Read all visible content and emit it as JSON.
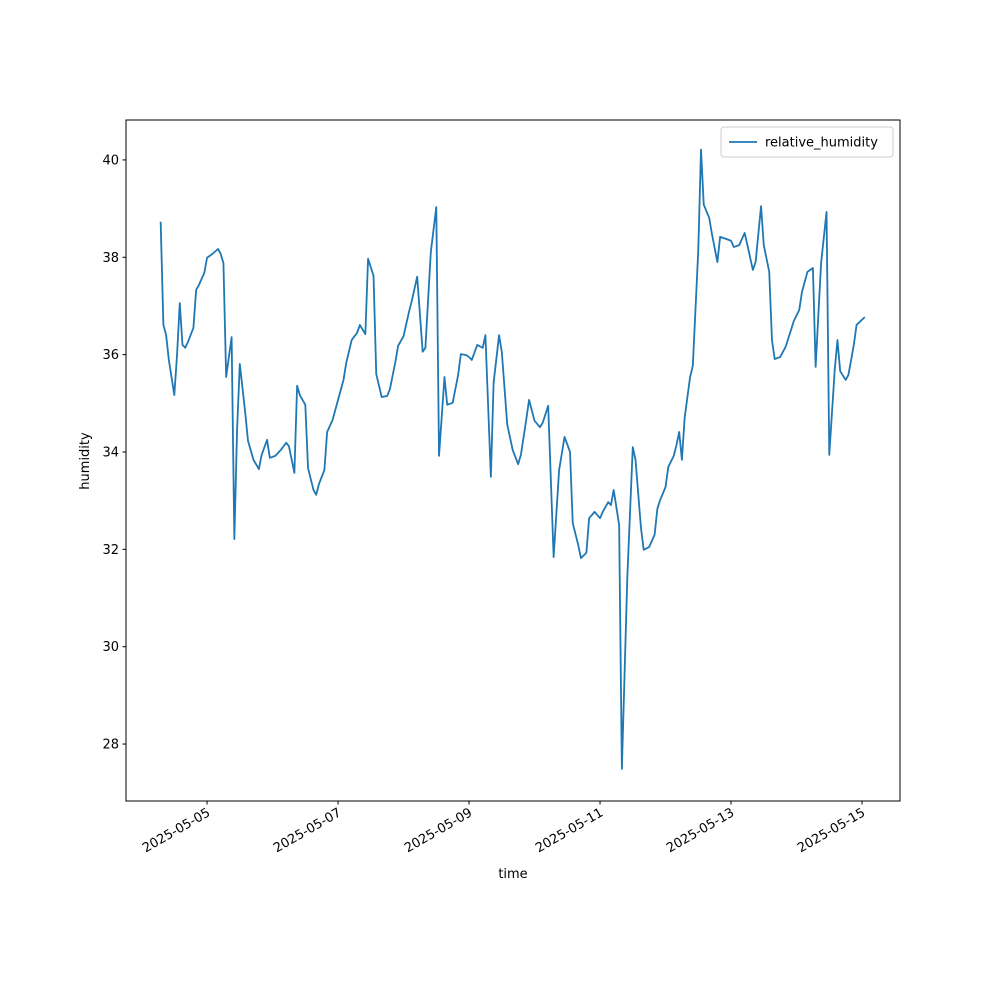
{
  "chart_data": {
    "type": "line",
    "xlabel": "time",
    "ylabel": "humidity",
    "x": [
      "2025-05-04T07:00",
      "2025-05-04T08:00",
      "2025-05-04T09:00",
      "2025-05-04T10:00",
      "2025-05-04T12:00",
      "2025-05-04T13:00",
      "2025-05-04T14:00",
      "2025-05-04T15:00",
      "2025-05-04T16:00",
      "2025-05-04T17:00",
      "2025-05-04T19:00",
      "2025-05-04T20:00",
      "2025-05-04T21:00",
      "2025-05-04T23:00",
      "2025-05-05T00:00",
      "2025-05-05T02:00",
      "2025-05-05T04:00",
      "2025-05-05T05:00",
      "2025-05-05T06:00",
      "2025-05-05T07:00",
      "2025-05-05T09:00",
      "2025-05-05T10:00",
      "2025-05-05T11:00",
      "2025-05-05T12:00",
      "2025-05-05T14:00",
      "2025-05-05T15:00",
      "2025-05-05T17:00",
      "2025-05-05T19:00",
      "2025-05-05T20:00",
      "2025-05-05T22:00",
      "2025-05-05T23:00",
      "2025-05-06T01:00",
      "2025-05-06T03:00",
      "2025-05-06T05:00",
      "2025-05-06T06:00",
      "2025-05-06T08:00",
      "2025-05-06T09:00",
      "2025-05-06T10:00",
      "2025-05-06T12:00",
      "2025-05-06T13:00",
      "2025-05-06T15:00",
      "2025-05-06T16:00",
      "2025-05-06T17:00",
      "2025-05-06T19:00",
      "2025-05-06T20:00",
      "2025-05-06T22:00",
      "2025-05-07T00:00",
      "2025-05-07T02:00",
      "2025-05-07T03:00",
      "2025-05-07T05:00",
      "2025-05-07T07:00",
      "2025-05-07T08:00",
      "2025-05-07T10:00",
      "2025-05-07T11:00",
      "2025-05-07T13:00",
      "2025-05-07T14:00",
      "2025-05-07T16:00",
      "2025-05-07T18:00",
      "2025-05-07T19:00",
      "2025-05-07T21:00",
      "2025-05-07T22:00",
      "2025-05-08T00:00",
      "2025-05-08T02:00",
      "2025-05-08T03:00",
      "2025-05-08T05:00",
      "2025-05-08T07:00",
      "2025-05-08T08:00",
      "2025-05-08T10:00",
      "2025-05-08T12:00",
      "2025-05-08T13:00",
      "2025-05-08T15:00",
      "2025-05-08T16:00",
      "2025-05-08T18:00",
      "2025-05-08T20:00",
      "2025-05-08T21:00",
      "2025-05-08T23:00",
      "2025-05-09T00:00",
      "2025-05-09T01:00",
      "2025-05-09T03:00",
      "2025-05-09T05:00",
      "2025-05-09T06:00",
      "2025-05-09T08:00",
      "2025-05-09T09:00",
      "2025-05-09T11:00",
      "2025-05-09T12:00",
      "2025-05-09T14:00",
      "2025-05-09T16:00",
      "2025-05-09T18:00",
      "2025-05-09T19:00",
      "2025-05-09T21:00",
      "2025-05-09T22:00",
      "2025-05-10T00:00",
      "2025-05-10T02:00",
      "2025-05-10T03:00",
      "2025-05-10T05:00",
      "2025-05-10T07:00",
      "2025-05-10T09:00",
      "2025-05-10T11:00",
      "2025-05-10T13:00",
      "2025-05-10T14:00",
      "2025-05-10T16:00",
      "2025-05-10T17:00",
      "2025-05-10T19:00",
      "2025-05-10T20:00",
      "2025-05-10T22:00",
      "2025-05-11T00:00",
      "2025-05-11T01:00",
      "2025-05-11T03:00",
      "2025-05-11T04:00",
      "2025-05-11T05:00",
      "2025-05-11T07:00",
      "2025-05-11T08:00",
      "2025-05-11T10:00",
      "2025-05-11T12:00",
      "2025-05-11T13:00",
      "2025-05-11T15:00",
      "2025-05-11T16:00",
      "2025-05-11T18:00",
      "2025-05-11T20:00",
      "2025-05-11T21:00",
      "2025-05-11T22:00",
      "2025-05-12T00:00",
      "2025-05-12T01:00",
      "2025-05-12T03:00",
      "2025-05-12T04:00",
      "2025-05-12T05:00",
      "2025-05-12T06:00",
      "2025-05-12T07:00",
      "2025-05-12T09:00",
      "2025-05-12T10:00",
      "2025-05-12T12:00",
      "2025-05-12T13:00",
      "2025-05-12T14:00",
      "2025-05-12T16:00",
      "2025-05-12T17:00",
      "2025-05-12T19:00",
      "2025-05-12T20:00",
      "2025-05-12T22:00",
      "2025-05-13T00:00",
      "2025-05-13T01:00",
      "2025-05-13T03:00",
      "2025-05-13T05:00",
      "2025-05-13T06:00",
      "2025-05-13T08:00",
      "2025-05-13T09:00",
      "2025-05-13T11:00",
      "2025-05-13T12:00",
      "2025-05-13T14:00",
      "2025-05-13T15:00",
      "2025-05-13T16:00",
      "2025-05-13T18:00",
      "2025-05-13T20:00",
      "2025-05-13T22:00",
      "2025-05-13T23:00",
      "2025-05-14T01:00",
      "2025-05-14T02:00",
      "2025-05-14T04:00",
      "2025-05-14T06:00",
      "2025-05-14T07:00",
      "2025-05-14T09:00",
      "2025-05-14T11:00",
      "2025-05-14T12:00",
      "2025-05-14T14:00",
      "2025-05-14T15:00",
      "2025-05-14T16:00",
      "2025-05-14T18:00",
      "2025-05-14T19:00",
      "2025-05-14T21:00",
      "2025-05-14T22:00",
      "2025-05-15T01:00"
    ],
    "series": [
      {
        "name": "relative_humidity",
        "color": "#1f77b4",
        "values": [
          38.73,
          36.61,
          36.4,
          35.89,
          35.17,
          35.99,
          37.06,
          36.2,
          36.14,
          36.26,
          36.55,
          37.33,
          37.43,
          37.68,
          37.99,
          38.07,
          38.17,
          38.07,
          37.88,
          35.54,
          36.36,
          32.21,
          34.45,
          35.81,
          34.8,
          34.23,
          33.84,
          33.65,
          33.94,
          34.25,
          33.88,
          33.92,
          34.04,
          34.19,
          34.12,
          33.57,
          35.36,
          35.17,
          34.97,
          33.67,
          33.22,
          33.12,
          33.34,
          33.63,
          34.41,
          34.66,
          35.07,
          35.48,
          35.83,
          36.3,
          36.45,
          36.61,
          36.42,
          37.97,
          37.62,
          35.6,
          35.13,
          35.15,
          35.29,
          35.85,
          36.18,
          36.38,
          36.88,
          37.1,
          37.6,
          36.06,
          36.14,
          38.11,
          39.03,
          33.92,
          35.54,
          34.97,
          35.01,
          35.58,
          36.01,
          35.99,
          35.95,
          35.89,
          36.2,
          36.14,
          36.4,
          33.49,
          35.42,
          36.4,
          36.06,
          34.56,
          34.04,
          33.75,
          33.94,
          34.68,
          35.07,
          34.64,
          34.51,
          34.6,
          34.95,
          31.84,
          33.63,
          34.31,
          34.0,
          32.54,
          32.09,
          31.82,
          31.93,
          32.64,
          32.77,
          32.64,
          32.77,
          32.97,
          32.91,
          33.22,
          32.5,
          27.49,
          31.43,
          34.1,
          33.84,
          32.44,
          31.99,
          32.05,
          32.3,
          32.83,
          33.01,
          33.28,
          33.69,
          33.92,
          34.14,
          34.41,
          33.84,
          34.7,
          35.54,
          35.77,
          38.15,
          40.21,
          39.08,
          38.81,
          38.48,
          37.9,
          38.42,
          38.38,
          38.34,
          38.21,
          38.25,
          38.5,
          38.25,
          37.74,
          37.9,
          39.05,
          38.25,
          37.7,
          36.3,
          35.91,
          35.95,
          36.16,
          36.51,
          36.69,
          36.92,
          37.29,
          37.7,
          37.78,
          35.75,
          37.88,
          38.93,
          33.94,
          35.69,
          36.3,
          35.66,
          35.48,
          35.58,
          36.2,
          36.61,
          36.77
        ]
      }
    ],
    "xlim": [
      "2025-05-03T18:18",
      "2025-05-15T13:55"
    ],
    "xticks": [
      "2025-05-05",
      "2025-05-07",
      "2025-05-09",
      "2025-05-11",
      "2025-05-13",
      "2025-05-15"
    ],
    "ylim": [
      26.83,
      40.82
    ],
    "yticks": [
      28,
      30,
      32,
      34,
      36,
      38,
      40
    ],
    "legend": "upper right",
    "grid": false
  }
}
